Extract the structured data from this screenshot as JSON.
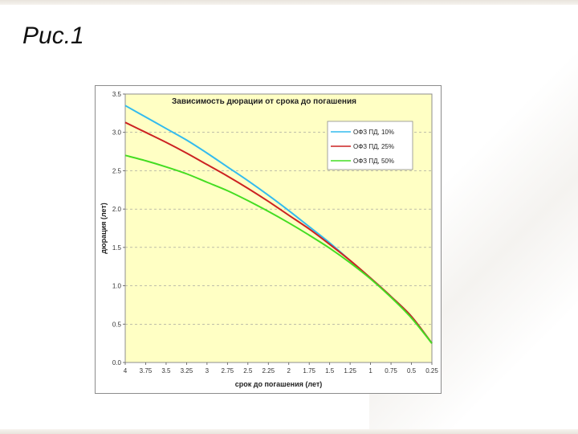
{
  "slide": {
    "title": "Рис.1"
  },
  "chart_data": {
    "type": "line",
    "title": "Зависимость дюрации от срока до погашения",
    "xlabel": "срок до погашения (лет)",
    "ylabel": "дюрация (лет)",
    "x": [
      4,
      3.75,
      3.5,
      3.25,
      3,
      2.75,
      2.5,
      2.25,
      2,
      1.75,
      1.5,
      1.25,
      1,
      0.75,
      0.5,
      0.25
    ],
    "x_tick_labels": [
      "4",
      "3.75",
      "3.5",
      "3.25",
      "3",
      "2.75",
      "2.5",
      "2.25",
      "2",
      "1.75",
      "1.5",
      "1.25",
      "1",
      "0.75",
      "0.5",
      "0.25"
    ],
    "ylim": [
      0,
      3.5
    ],
    "y_ticks": [
      0,
      0.5,
      1,
      1.5,
      2,
      2.5,
      3,
      3.5
    ],
    "y_tick_labels": [
      "0.0",
      "0.5",
      "1.0",
      "1.5",
      "2.0",
      "2.5",
      "3.0",
      "3.5"
    ],
    "x_reversed": true,
    "grid": "horizontal dashed",
    "legend_position": "top-right",
    "background_color": "#ffffc4",
    "series": [
      {
        "name": "ОФЗ ПД, 10%",
        "color": "#33bbee",
        "values": [
          3.35,
          3.2,
          3.05,
          2.9,
          2.73,
          2.55,
          2.37,
          2.18,
          1.98,
          1.77,
          1.56,
          1.33,
          1.1,
          0.86,
          0.6,
          0.25
        ]
      },
      {
        "name": "ОФЗ ПД, 25%",
        "color": "#cc2222",
        "values": [
          3.13,
          3.0,
          2.87,
          2.73,
          2.58,
          2.43,
          2.27,
          2.1,
          1.92,
          1.74,
          1.54,
          1.33,
          1.1,
          0.86,
          0.6,
          0.25
        ]
      },
      {
        "name": "ОФЗ ПД, 50%",
        "color": "#44dd22",
        "values": [
          2.7,
          2.63,
          2.55,
          2.46,
          2.35,
          2.24,
          2.11,
          1.97,
          1.82,
          1.66,
          1.49,
          1.3,
          1.09,
          0.85,
          0.58,
          0.25
        ]
      }
    ]
  }
}
